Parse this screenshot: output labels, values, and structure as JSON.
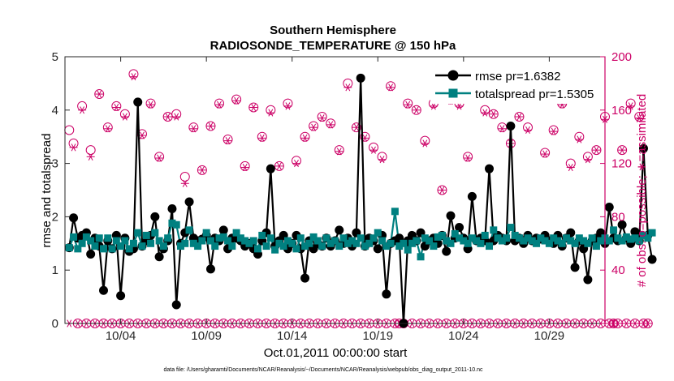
{
  "chart_data": {
    "type": "line",
    "title": "Southern Hemisphere",
    "subtitle": "RADIOSONDE_TEMPERATURE @ 150 hPa",
    "xlabel": "Oct.01,2011 00:00:00 start",
    "ylabel_left": "rmse and totalspread",
    "ylabel_right": "# of obs: o=possible; ∗=assimilated",
    "footnote": "data file: /Users/gharamti/Documents/NCAR/Reanalysis/~/Documents/NCAR/Reanalysis/webpub/obs_diag_output_2011-10.nc",
    "x_tick_labels": [
      "10/04",
      "10/09",
      "10/14",
      "10/19",
      "10/24",
      "10/29"
    ],
    "x_tick_positions": [
      4,
      9,
      14,
      19,
      24,
      29
    ],
    "xlim": [
      0.75,
      32.25
    ],
    "ylim_left": [
      0,
      5
    ],
    "ylim_right": [
      0,
      200
    ],
    "y_ticks_left": [
      "0",
      "1",
      "2",
      "3",
      "4",
      "5"
    ],
    "y_ticks_right": [
      "0",
      "40",
      "80",
      "120",
      "160",
      "200"
    ],
    "grid": false,
    "legend_position": "top-right",
    "colors": {
      "rmse": "#000000",
      "totalspread": "#008080",
      "obs": "#cc0066"
    },
    "x_start": 1,
    "x_step": 0.25,
    "series": [
      {
        "name": "rmse pr=1.6382",
        "axis": "left",
        "values": [
          1.42,
          1.98,
          1.6,
          1.65,
          1.7,
          1.3,
          1.6,
          1.45,
          0.62,
          1.55,
          1.4,
          1.65,
          0.52,
          1.6,
          1.35,
          1.4,
          4.15,
          1.45,
          1.55,
          1.65,
          2.0,
          1.25,
          1.4,
          1.55,
          2.15,
          0.35,
          1.5,
          1.7,
          2.28,
          1.6,
          1.55,
          1.58,
          1.65,
          1.02,
          1.6,
          1.55,
          1.75,
          1.4,
          1.6,
          1.6,
          1.55,
          1.45,
          1.5,
          1.4,
          1.3,
          1.55,
          1.7,
          2.9,
          1.45,
          1.55,
          1.65,
          1.4,
          1.5,
          1.65,
          1.4,
          0.85,
          1.55,
          1.4,
          1.5,
          1.45,
          1.6,
          1.45,
          1.55,
          1.75,
          1.5,
          1.6,
          1.45,
          1.7,
          4.6,
          1.45,
          1.6,
          1.55,
          1.4,
          1.65,
          0.55,
          1.5,
          1.55,
          1.6,
          0.0,
          1.55,
          1.65,
          1.55,
          1.7,
          1.45,
          1.55,
          1.6,
          1.5,
          1.65,
          1.35,
          2.02,
          1.6,
          1.8,
          1.6,
          1.4,
          2.38,
          1.55,
          1.6,
          1.55,
          2.9,
          1.55,
          1.65,
          1.6,
          1.55,
          3.7,
          1.55,
          1.6,
          1.5,
          1.65,
          1.55,
          1.6,
          1.58,
          1.65,
          1.55,
          1.5,
          1.65,
          1.45,
          1.6,
          1.7,
          1.05,
          1.55,
          1.4,
          0.82,
          1.55,
          1.6,
          1.7,
          1.5,
          2.18,
          1.6,
          1.55,
          1.85,
          1.6,
          1.5,
          1.72,
          1.55,
          3.28,
          1.65,
          1.2
        ]
      },
      {
        "name": "totalspread pr=1.5305",
        "axis": "left",
        "values": [
          1.42,
          1.62,
          1.4,
          1.5,
          1.62,
          1.55,
          1.45,
          1.6,
          1.4,
          1.6,
          1.4,
          1.55,
          1.45,
          1.55,
          1.4,
          1.5,
          1.7,
          1.45,
          1.65,
          1.5,
          1.7,
          1.55,
          1.45,
          1.6,
          1.88,
          1.85,
          1.45,
          1.5,
          1.75,
          1.5,
          1.45,
          1.55,
          1.7,
          1.55,
          1.45,
          1.6,
          1.62,
          1.55,
          1.45,
          1.7,
          1.6,
          1.55,
          1.5,
          1.55,
          1.4,
          1.65,
          1.45,
          1.6,
          1.38,
          1.5,
          1.45,
          1.55,
          1.5,
          1.4,
          1.6,
          1.45,
          1.5,
          1.62,
          1.55,
          1.45,
          1.6,
          1.5,
          1.55,
          1.45,
          1.6,
          1.5,
          1.55,
          1.5,
          1.6,
          1.45,
          1.5,
          1.6,
          1.7,
          1.55,
          1.45,
          1.5,
          2.1,
          1.45,
          1.5,
          1.38,
          1.5,
          1.55,
          1.25,
          1.6,
          1.55,
          1.45,
          1.62,
          1.65,
          1.55,
          1.5,
          1.68,
          1.6,
          1.55,
          1.5,
          1.6,
          1.55,
          1.5,
          1.65,
          1.45,
          1.75,
          1.6,
          1.55,
          1.6,
          1.8,
          1.65,
          1.6,
          1.55,
          1.6,
          1.55,
          1.5,
          1.6,
          1.55,
          1.5,
          1.6,
          1.55,
          1.5,
          1.6,
          1.55,
          1.5,
          1.6,
          1.55,
          1.5,
          1.6,
          1.45,
          1.55,
          1.6,
          1.55,
          1.75,
          1.6,
          1.55,
          1.62,
          1.58,
          1.6,
          1.55,
          1.65,
          1.6,
          1.7
        ]
      },
      {
        "name": "obs possible",
        "axis": "right",
        "values": [
          145,
          135,
          0,
          163,
          0,
          130,
          0,
          172,
          0,
          147,
          0,
          163,
          0,
          157,
          0,
          187,
          0,
          142,
          0,
          165,
          0,
          125,
          0,
          155,
          0,
          157,
          0,
          110,
          0,
          147,
          0,
          115,
          0,
          148,
          0,
          165,
          0,
          138,
          0,
          168,
          0,
          118,
          0,
          162,
          0,
          140,
          0,
          160,
          0,
          118,
          0,
          165,
          0,
          122,
          0,
          140,
          0,
          148,
          0,
          155,
          0,
          150,
          0,
          130,
          0,
          180,
          0,
          147,
          0,
          140,
          0,
          132,
          0,
          125,
          0,
          178,
          0,
          0,
          0,
          165,
          0,
          160,
          0,
          137,
          0,
          165,
          0,
          100,
          0,
          168,
          0,
          165,
          0,
          125,
          0,
          170,
          0,
          160,
          0,
          157,
          0,
          147,
          0,
          135,
          0,
          155,
          0,
          147,
          0,
          170,
          0,
          128,
          0,
          145,
          0,
          165,
          0,
          120,
          0,
          140,
          0,
          125,
          0,
          130,
          0,
          155,
          0,
          0,
          0,
          130,
          0,
          165,
          0,
          155,
          0,
          0
        ]
      },
      {
        "name": "obs assimilated",
        "axis": "right",
        "values": [
          0,
          132,
          0,
          160,
          0,
          125,
          0,
          172,
          0,
          146,
          0,
          162,
          0,
          155,
          0,
          185,
          0,
          141,
          0,
          164,
          0,
          124,
          0,
          155,
          0,
          155,
          0,
          105,
          0,
          146,
          0,
          115,
          0,
          148,
          0,
          164,
          0,
          137,
          0,
          167,
          0,
          117,
          0,
          162,
          0,
          139,
          0,
          158,
          0,
          118,
          0,
          163,
          0,
          120,
          0,
          139,
          0,
          147,
          0,
          154,
          0,
          149,
          0,
          129,
          0,
          177,
          0,
          147,
          0,
          139,
          0,
          130,
          0,
          123,
          0,
          177,
          0,
          0,
          0,
          164,
          0,
          160,
          0,
          135,
          0,
          163,
          0,
          100,
          0,
          167,
          0,
          163,
          0,
          124,
          0,
          168,
          0,
          158,
          0,
          157,
          0,
          146,
          0,
          135,
          0,
          155,
          0,
          145,
          0,
          168,
          0,
          127,
          0,
          144,
          0,
          164,
          0,
          117,
          0,
          138,
          0,
          123,
          0,
          130,
          0,
          153,
          0,
          0,
          0,
          130,
          0,
          163,
          0,
          154,
          0,
          0
        ]
      }
    ]
  }
}
